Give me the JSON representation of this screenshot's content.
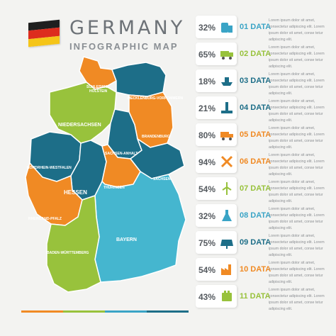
{
  "header": {
    "title": "GERMANY",
    "subtitle": "INFOGRAPHIC MAP",
    "flag_colors": [
      "#1f1f1f",
      "#dd2c1e",
      "#f5c518"
    ]
  },
  "map": {
    "regions": [
      {
        "key": "schleswig",
        "label": "SCHLESWIG-HOLSTEIN",
        "color": "#f08a24"
      },
      {
        "key": "mecklenburg",
        "label": "MECKLENBURG-VORPOMMERN",
        "color": "#1d6e88"
      },
      {
        "key": "niedersachsen",
        "label": "NIEDERSACHSEN",
        "color": "#98c23c"
      },
      {
        "key": "brandenburg",
        "label": "BRANDENBURG",
        "color": "#f08a24"
      },
      {
        "key": "sachsenanhalt",
        "label": "SACHSEN-ANHALT",
        "color": "#1d6e88"
      },
      {
        "key": "nrw",
        "label": "NORDRHEIN-WESTFALEN",
        "color": "#1d6e88"
      },
      {
        "key": "sachsen",
        "label": "SACHSEN",
        "color": "#1d6e88"
      },
      {
        "key": "hessen",
        "label": "HESSEN",
        "color": "#1d6e88"
      },
      {
        "key": "thueringen",
        "label": "THÜRINGEN",
        "color": "#f08a24"
      },
      {
        "key": "rheinland",
        "label": "RHEINLAND-PFALZ",
        "color": "#f08a24"
      },
      {
        "key": "bayern",
        "label": "BAYERN",
        "color": "#45b6cf"
      },
      {
        "key": "bw",
        "label": "BADEN-WÜRTTEMBERG",
        "color": "#98c23c"
      }
    ]
  },
  "items": [
    {
      "percent": "32%",
      "label": "01 DATA",
      "icon": "oil-pump-icon",
      "color": "#3aa4c6"
    },
    {
      "percent": "65%",
      "label": "02 DATA",
      "icon": "truck-icon",
      "color": "#98c23c"
    },
    {
      "percent": "18%",
      "label": "03 DATA",
      "icon": "ship-icon",
      "color": "#1d6e88"
    },
    {
      "percent": "21%",
      "label": "04 DATA",
      "icon": "oil-rig-icon",
      "color": "#1d6e88"
    },
    {
      "percent": "80%",
      "label": "05 DATA",
      "icon": "mining-truck-icon",
      "color": "#f08a24"
    },
    {
      "percent": "94%",
      "label": "06 DATA",
      "icon": "tools-icon",
      "color": "#f08a24"
    },
    {
      "percent": "54%",
      "label": "07 DATA",
      "icon": "wind-turbine-icon",
      "color": "#98c23c"
    },
    {
      "percent": "32%",
      "label": "08 DATA",
      "icon": "flask-icon",
      "color": "#3aa4c6"
    },
    {
      "percent": "75%",
      "label": "09 DATA",
      "icon": "solar-panel-icon",
      "color": "#1d6e88"
    },
    {
      "percent": "54%",
      "label": "10 DATA",
      "icon": "factory-icon",
      "color": "#f08a24"
    },
    {
      "percent": "43%",
      "label": "11 DATA",
      "icon": "battery-icon",
      "color": "#98c23c"
    }
  ],
  "description": "Lorem ipsum dolor sit amet, consectetur adipiscing elit. Lorem ipsum dolor sit amet, conse tetur adipiscing elit.",
  "bottom_bar_colors": [
    "#f08a24",
    "#98c23c",
    "#3aa4c6",
    "#1d6e88"
  ]
}
